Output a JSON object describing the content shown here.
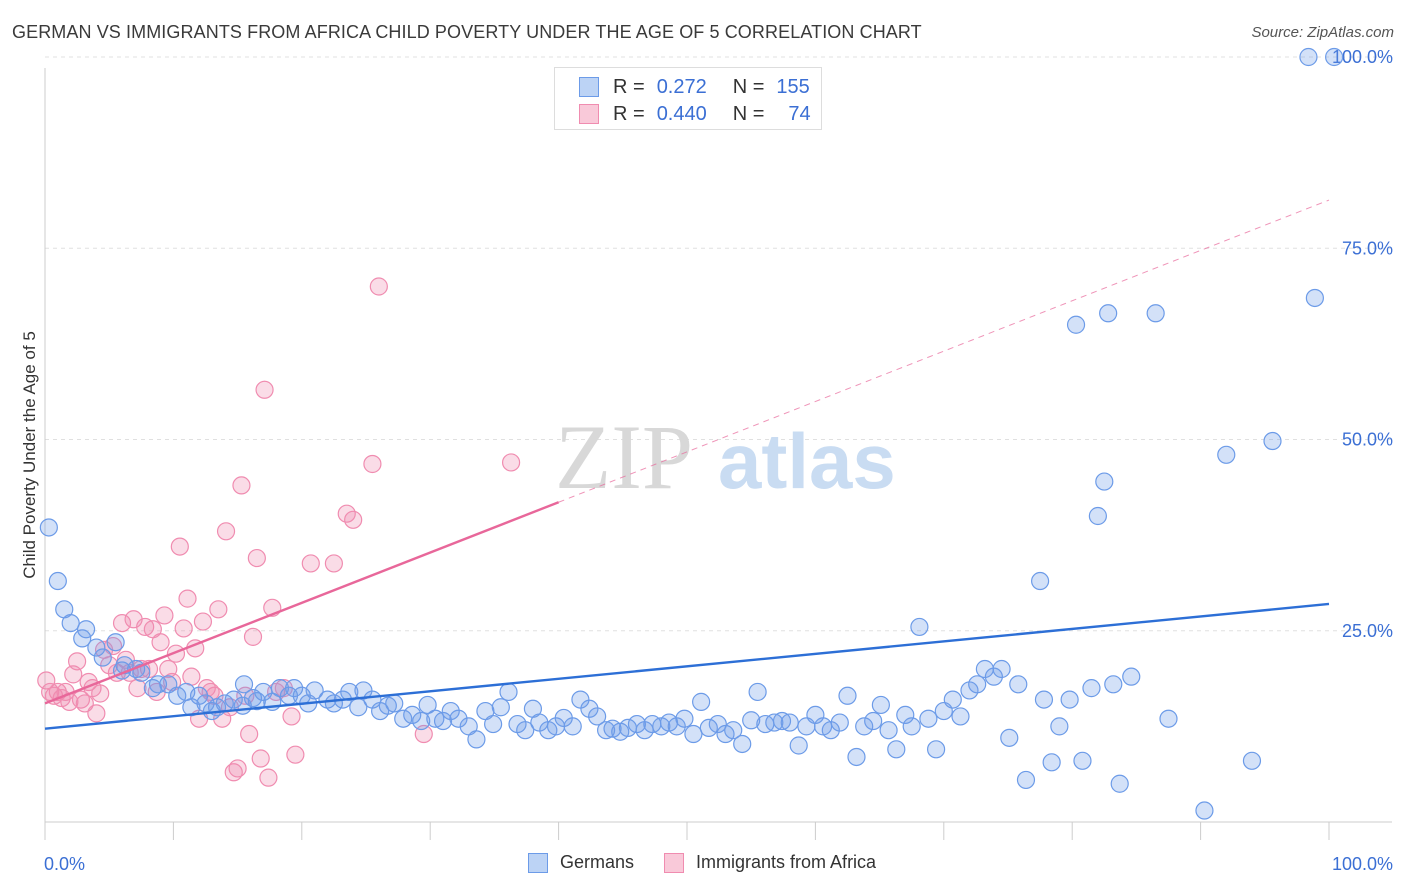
{
  "title": "GERMAN VS IMMIGRANTS FROM AFRICA CHILD POVERTY UNDER THE AGE OF 5 CORRELATION CHART",
  "source": "Source: ZipAtlas.com",
  "watermark": "ZIPatlas",
  "legend_top": {
    "rows": [
      {
        "r_label": "R =",
        "r_value": "0.272",
        "n_label": "N =",
        "n_value": "155"
      },
      {
        "r_label": "R =",
        "r_value": "0.440",
        "n_label": "N =",
        "n_value": "74"
      }
    ]
  },
  "chart_data": {
    "type": "scatter",
    "title": "GERMAN VS IMMIGRANTS FROM AFRICA CHILD POVERTY UNDER THE AGE OF 5 CORRELATION CHART",
    "xlabel": "",
    "ylabel": "Child Poverty Under the Age of 5",
    "xlim": [
      0,
      100
    ],
    "ylim": [
      0,
      105
    ],
    "x_tick_labels": [
      "0.0%",
      "100.0%"
    ],
    "y_tick_labels": [
      "25.0%",
      "50.0%",
      "75.0%",
      "100.0%"
    ],
    "y_ticks": [
      25,
      50,
      75,
      100
    ],
    "grid": true,
    "legend": "bottom",
    "colors": {
      "germans": "#6c9be8",
      "africa": "#f08cb0",
      "germans_line": "#2d6fd6",
      "africa_line": "#e8679a"
    },
    "series": [
      {
        "name": "Germans",
        "trend": {
          "x": [
            0,
            100
          ],
          "y": [
            12.2,
            28.5
          ]
        },
        "points": [
          [
            0.3,
            38.5
          ],
          [
            1,
            31.5
          ],
          [
            1.5,
            27.8
          ],
          [
            2,
            26
          ],
          [
            3.2,
            25.2
          ],
          [
            2.9,
            24
          ],
          [
            4,
            22.8
          ],
          [
            4.5,
            21.5
          ],
          [
            5.5,
            23.5
          ],
          [
            6,
            19.8
          ],
          [
            6.2,
            20.5
          ],
          [
            7.1,
            20
          ],
          [
            7.5,
            19.5
          ],
          [
            8.4,
            17.5
          ],
          [
            8.8,
            18
          ],
          [
            9.6,
            18
          ],
          [
            10.3,
            16.5
          ],
          [
            11,
            17
          ],
          [
            11.4,
            15
          ],
          [
            12,
            16.5
          ],
          [
            12.5,
            15.5
          ],
          [
            13,
            14.5
          ],
          [
            13.4,
            15
          ],
          [
            14,
            15.5
          ],
          [
            14.7,
            16
          ],
          [
            15.4,
            15.2
          ],
          [
            15.5,
            18
          ],
          [
            16.2,
            16.2
          ],
          [
            16.5,
            15.8
          ],
          [
            17,
            17
          ],
          [
            17.7,
            15.7
          ],
          [
            18.3,
            17.5
          ],
          [
            19,
            16.5
          ],
          [
            19.4,
            17.5
          ],
          [
            20,
            16.5
          ],
          [
            20.5,
            15.5
          ],
          [
            21,
            17.2
          ],
          [
            22,
            16
          ],
          [
            22.5,
            15.5
          ],
          [
            23.2,
            16
          ],
          [
            23.7,
            17
          ],
          [
            24.4,
            15
          ],
          [
            24.8,
            17.2
          ],
          [
            25.5,
            16
          ],
          [
            26.1,
            14.5
          ],
          [
            26.7,
            15.2
          ],
          [
            27.2,
            15.5
          ],
          [
            27.9,
            13.5
          ],
          [
            28.6,
            14
          ],
          [
            29.3,
            13.2
          ],
          [
            29.8,
            15.3
          ],
          [
            30.4,
            13.5
          ],
          [
            31,
            13.2
          ],
          [
            31.6,
            14.5
          ],
          [
            32.2,
            13.5
          ],
          [
            33,
            12.5
          ],
          [
            33.6,
            10.8
          ],
          [
            34.3,
            14.5
          ],
          [
            34.9,
            12.8
          ],
          [
            35.5,
            15
          ],
          [
            36.1,
            17
          ],
          [
            36.8,
            12.8
          ],
          [
            37.4,
            12
          ],
          [
            38,
            14.8
          ],
          [
            38.5,
            13
          ],
          [
            39.2,
            12
          ],
          [
            39.8,
            12.5
          ],
          [
            40.4,
            13.6
          ],
          [
            41.1,
            12.5
          ],
          [
            41.7,
            16
          ],
          [
            42.4,
            14.8
          ],
          [
            43,
            13.8
          ],
          [
            43.7,
            12
          ],
          [
            44.2,
            12.2
          ],
          [
            44.8,
            11.8
          ],
          [
            45.4,
            12.3
          ],
          [
            46.1,
            12.8
          ],
          [
            46.7,
            12
          ],
          [
            47.3,
            12.8
          ],
          [
            48,
            12.5
          ],
          [
            48.6,
            13
          ],
          [
            49.2,
            12.5
          ],
          [
            49.8,
            13.5
          ],
          [
            50.5,
            11.5
          ],
          [
            51.1,
            15.7
          ],
          [
            51.7,
            12.3
          ],
          [
            52.4,
            12.8
          ],
          [
            53,
            11.5
          ],
          [
            53.6,
            12
          ],
          [
            54.3,
            10.2
          ],
          [
            55,
            13.3
          ],
          [
            55.5,
            17
          ],
          [
            56.1,
            12.8
          ],
          [
            56.8,
            13
          ],
          [
            57.4,
            13.2
          ],
          [
            58,
            13
          ],
          [
            58.7,
            10
          ],
          [
            59.3,
            12.5
          ],
          [
            60,
            14
          ],
          [
            60.6,
            12.5
          ],
          [
            61.2,
            12
          ],
          [
            61.9,
            13
          ],
          [
            62.5,
            16.5
          ],
          [
            63.2,
            8.5
          ],
          [
            63.8,
            12.5
          ],
          [
            64.5,
            13.2
          ],
          [
            65.1,
            15.3
          ],
          [
            65.7,
            12
          ],
          [
            66.3,
            9.5
          ],
          [
            67,
            14
          ],
          [
            67.5,
            12.5
          ],
          [
            68.1,
            25.5
          ],
          [
            68.8,
            13.5
          ],
          [
            69.4,
            9.5
          ],
          [
            70,
            14.5
          ],
          [
            70.7,
            16
          ],
          [
            71.3,
            13.8
          ],
          [
            72,
            17.2
          ],
          [
            72.6,
            18
          ],
          [
            73.2,
            20
          ],
          [
            73.9,
            19
          ],
          [
            74.5,
            20
          ],
          [
            75.1,
            11
          ],
          [
            75.8,
            18
          ],
          [
            76.4,
            5.5
          ],
          [
            77.5,
            31.5
          ],
          [
            77.8,
            16
          ],
          [
            78.4,
            7.8
          ],
          [
            79,
            12.5
          ],
          [
            79.8,
            16
          ],
          [
            80.3,
            65
          ],
          [
            80.8,
            8
          ],
          [
            81.5,
            17.5
          ],
          [
            82,
            40
          ],
          [
            82.5,
            44.5
          ],
          [
            82.8,
            66.5
          ],
          [
            83.2,
            18
          ],
          [
            83.7,
            5
          ],
          [
            84.6,
            19
          ],
          [
            86.5,
            66.5
          ],
          [
            87.5,
            13.5
          ],
          [
            90.3,
            1.5
          ],
          [
            92,
            48
          ],
          [
            94,
            8
          ],
          [
            95.6,
            49.8
          ],
          [
            98.4,
            100
          ],
          [
            98.9,
            68.5
          ],
          [
            100.4,
            100
          ]
        ]
      },
      {
        "name": "Immigrants from Africa",
        "trend": {
          "x": [
            0,
            40
          ],
          "y": [
            15.5,
            41.8
          ]
        },
        "trend_dashed": {
          "x": [
            40,
            100
          ],
          "y": [
            41.8,
            81.3
          ]
        },
        "points": [
          [
            0.1,
            18.5
          ],
          [
            0.4,
            17
          ],
          [
            0.7,
            16.5
          ],
          [
            1,
            17
          ],
          [
            1.3,
            16.2
          ],
          [
            1.6,
            17
          ],
          [
            1.9,
            15.7
          ],
          [
            2.2,
            19.3
          ],
          [
            2.5,
            21
          ],
          [
            2.8,
            16
          ],
          [
            3.1,
            15.5
          ],
          [
            3.4,
            18.3
          ],
          [
            3.7,
            17.5
          ],
          [
            4,
            14.2
          ],
          [
            4.3,
            16.8
          ],
          [
            4.6,
            22.5
          ],
          [
            5,
            20.5
          ],
          [
            5.3,
            23
          ],
          [
            5.6,
            19.5
          ],
          [
            6,
            26
          ],
          [
            6.3,
            21.2
          ],
          [
            6.6,
            19.5
          ],
          [
            6.9,
            26.5
          ],
          [
            7.2,
            17.5
          ],
          [
            7.5,
            20
          ],
          [
            7.8,
            25.5
          ],
          [
            8.1,
            20
          ],
          [
            8.4,
            25.2
          ],
          [
            8.7,
            17
          ],
          [
            9,
            23.5
          ],
          [
            9.3,
            27
          ],
          [
            9.6,
            20
          ],
          [
            9.9,
            18.3
          ],
          [
            10.2,
            22
          ],
          [
            10.5,
            36
          ],
          [
            10.8,
            25.3
          ],
          [
            11.1,
            29.2
          ],
          [
            11.4,
            19
          ],
          [
            11.7,
            22.7
          ],
          [
            12,
            13.5
          ],
          [
            12.3,
            26.2
          ],
          [
            12.6,
            17.5
          ],
          [
            12.9,
            17
          ],
          [
            13.2,
            16.5
          ],
          [
            13.5,
            27.8
          ],
          [
            13.8,
            13.5
          ],
          [
            14.1,
            38
          ],
          [
            14.4,
            15
          ],
          [
            14.7,
            6.5
          ],
          [
            15,
            7
          ],
          [
            15.3,
            44
          ],
          [
            15.6,
            16.5
          ],
          [
            15.9,
            11.5
          ],
          [
            16.2,
            24.2
          ],
          [
            16.5,
            34.5
          ],
          [
            16.8,
            8.3
          ],
          [
            17.1,
            56.5
          ],
          [
            17.4,
            5.8
          ],
          [
            17.7,
            28
          ],
          [
            18,
            17
          ],
          [
            18.6,
            17.5
          ],
          [
            19.2,
            13.8
          ],
          [
            19.5,
            8.8
          ],
          [
            20.7,
            33.8
          ],
          [
            22.5,
            33.8
          ],
          [
            23.5,
            40.3
          ],
          [
            24,
            39.5
          ],
          [
            25.5,
            46.8
          ],
          [
            26,
            70
          ],
          [
            29.5,
            11.5
          ],
          [
            36.3,
            47
          ]
        ]
      }
    ]
  },
  "legend_bottom": [
    {
      "label": "Germans"
    },
    {
      "label": "Immigrants from Africa"
    }
  ]
}
